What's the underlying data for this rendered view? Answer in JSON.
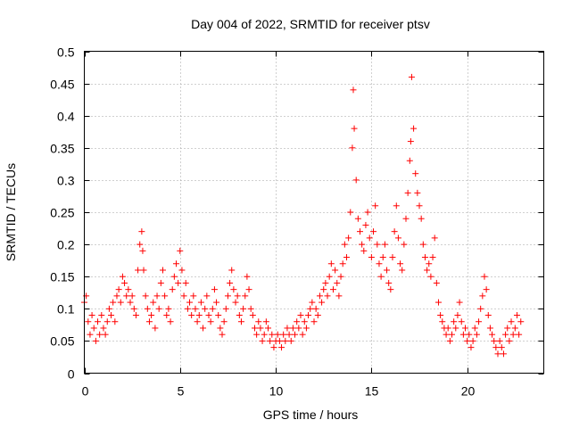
{
  "chart_data": {
    "type": "scatter",
    "title": "Day 004 of 2022, SRMTID for receiver ptsv",
    "xlabel": "GPS time / hours",
    "ylabel": "SRMTID / TECUs",
    "xlim": [
      0,
      24
    ],
    "ylim": [
      0,
      0.5
    ],
    "xticks": [
      0,
      5,
      10,
      15,
      20
    ],
    "xtick_labels": [
      "0",
      "5",
      "10",
      "15",
      "20"
    ],
    "yticks": [
      0,
      0.05,
      0.1,
      0.15,
      0.2,
      0.25,
      0.3,
      0.35,
      0.4,
      0.45,
      0.5
    ],
    "ytick_labels": [
      "0",
      "0.05",
      "0.1",
      "0.15",
      "0.2",
      "0.25",
      "0.3",
      "0.35",
      "0.4",
      "0.45",
      "0.5"
    ],
    "grid": true,
    "marker": "+",
    "color": "#ff0000",
    "series": [
      {
        "name": "SRMTID",
        "x": [
          0.0,
          0.1,
          0.2,
          0.3,
          0.4,
          0.5,
          0.6,
          0.7,
          0.8,
          0.9,
          1.0,
          1.1,
          1.2,
          1.3,
          1.4,
          1.5,
          1.6,
          1.7,
          1.8,
          1.9,
          2.0,
          2.1,
          2.2,
          2.3,
          2.4,
          2.5,
          2.6,
          2.7,
          2.8,
          2.9,
          3.0,
          3.05,
          3.1,
          3.2,
          3.3,
          3.4,
          3.5,
          3.6,
          3.7,
          3.8,
          3.9,
          4.0,
          4.1,
          4.2,
          4.3,
          4.4,
          4.5,
          4.6,
          4.7,
          4.8,
          4.9,
          5.0,
          5.1,
          5.2,
          5.3,
          5.4,
          5.5,
          5.6,
          5.7,
          5.8,
          5.9,
          6.0,
          6.1,
          6.2,
          6.3,
          6.4,
          6.5,
          6.6,
          6.7,
          6.8,
          6.9,
          7.0,
          7.1,
          7.2,
          7.3,
          7.4,
          7.5,
          7.6,
          7.7,
          7.8,
          7.9,
          8.0,
          8.1,
          8.2,
          8.3,
          8.4,
          8.5,
          8.6,
          8.7,
          8.8,
          8.9,
          9.0,
          9.1,
          9.2,
          9.3,
          9.4,
          9.5,
          9.6,
          9.7,
          9.8,
          9.9,
          10.0,
          10.1,
          10.2,
          10.3,
          10.4,
          10.5,
          10.6,
          10.7,
          10.8,
          10.9,
          11.0,
          11.1,
          11.2,
          11.3,
          11.4,
          11.5,
          11.6,
          11.7,
          11.8,
          11.9,
          12.0,
          12.1,
          12.2,
          12.3,
          12.4,
          12.5,
          12.6,
          12.7,
          12.8,
          12.9,
          13.0,
          13.1,
          13.2,
          13.3,
          13.4,
          13.5,
          13.6,
          13.7,
          13.8,
          13.9,
          14.0,
          14.05,
          14.1,
          14.2,
          14.3,
          14.4,
          14.5,
          14.6,
          14.7,
          14.8,
          14.9,
          15.0,
          15.1,
          15.2,
          15.3,
          15.4,
          15.5,
          15.6,
          15.7,
          15.8,
          15.9,
          16.0,
          16.1,
          16.2,
          16.3,
          16.4,
          16.5,
          16.6,
          16.7,
          16.8,
          16.9,
          17.0,
          17.05,
          17.1,
          17.2,
          17.3,
          17.4,
          17.5,
          17.6,
          17.7,
          17.8,
          17.9,
          18.0,
          18.1,
          18.2,
          18.3,
          18.4,
          18.5,
          18.6,
          18.7,
          18.8,
          18.9,
          19.0,
          19.1,
          19.2,
          19.3,
          19.4,
          19.5,
          19.6,
          19.7,
          19.8,
          19.9,
          20.0,
          20.1,
          20.2,
          20.3,
          20.4,
          20.5,
          20.6,
          20.7,
          20.8,
          20.9,
          21.0,
          21.1,
          21.2,
          21.3,
          21.4,
          21.5,
          21.6,
          21.7,
          21.8,
          21.9,
          22.0,
          22.1,
          22.2,
          22.3,
          22.4,
          22.5,
          22.6,
          22.7,
          22.8
        ],
        "y": [
          0.11,
          0.12,
          0.08,
          0.06,
          0.09,
          0.07,
          0.05,
          0.08,
          0.06,
          0.09,
          0.07,
          0.06,
          0.08,
          0.1,
          0.09,
          0.11,
          0.08,
          0.12,
          0.13,
          0.11,
          0.15,
          0.14,
          0.12,
          0.13,
          0.11,
          0.12,
          0.1,
          0.09,
          0.16,
          0.2,
          0.22,
          0.19,
          0.16,
          0.12,
          0.1,
          0.08,
          0.09,
          0.11,
          0.07,
          0.12,
          0.1,
          0.14,
          0.16,
          0.12,
          0.09,
          0.1,
          0.08,
          0.13,
          0.15,
          0.17,
          0.14,
          0.19,
          0.16,
          0.12,
          0.14,
          0.1,
          0.11,
          0.09,
          0.12,
          0.1,
          0.08,
          0.09,
          0.11,
          0.07,
          0.1,
          0.12,
          0.09,
          0.08,
          0.1,
          0.13,
          0.11,
          0.09,
          0.07,
          0.06,
          0.08,
          0.1,
          0.12,
          0.14,
          0.16,
          0.13,
          0.11,
          0.12,
          0.09,
          0.08,
          0.1,
          0.12,
          0.15,
          0.13,
          0.1,
          0.09,
          0.07,
          0.06,
          0.08,
          0.07,
          0.05,
          0.06,
          0.08,
          0.07,
          0.05,
          0.06,
          0.04,
          0.05,
          0.06,
          0.05,
          0.04,
          0.06,
          0.05,
          0.07,
          0.06,
          0.05,
          0.07,
          0.06,
          0.08,
          0.07,
          0.09,
          0.06,
          0.08,
          0.07,
          0.09,
          0.1,
          0.11,
          0.08,
          0.1,
          0.09,
          0.12,
          0.11,
          0.13,
          0.14,
          0.12,
          0.15,
          0.17,
          0.13,
          0.16,
          0.14,
          0.12,
          0.15,
          0.17,
          0.2,
          0.18,
          0.21,
          0.25,
          0.35,
          0.44,
          0.38,
          0.3,
          0.24,
          0.22,
          0.2,
          0.19,
          0.23,
          0.25,
          0.21,
          0.18,
          0.22,
          0.26,
          0.2,
          0.17,
          0.15,
          0.18,
          0.2,
          0.16,
          0.14,
          0.13,
          0.18,
          0.22,
          0.26,
          0.21,
          0.17,
          0.16,
          0.2,
          0.24,
          0.28,
          0.33,
          0.36,
          0.46,
          0.38,
          0.31,
          0.28,
          0.26,
          0.24,
          0.2,
          0.18,
          0.16,
          0.17,
          0.15,
          0.18,
          0.21,
          0.14,
          0.11,
          0.09,
          0.08,
          0.07,
          0.06,
          0.07,
          0.05,
          0.06,
          0.08,
          0.07,
          0.09,
          0.11,
          0.08,
          0.06,
          0.07,
          0.05,
          0.06,
          0.04,
          0.05,
          0.07,
          0.06,
          0.08,
          0.1,
          0.12,
          0.15,
          0.13,
          0.09,
          0.07,
          0.06,
          0.05,
          0.04,
          0.03,
          0.05,
          0.04,
          0.03,
          0.06,
          0.07,
          0.05,
          0.08,
          0.06,
          0.07,
          0.09,
          0.06,
          0.08
        ]
      }
    ]
  }
}
